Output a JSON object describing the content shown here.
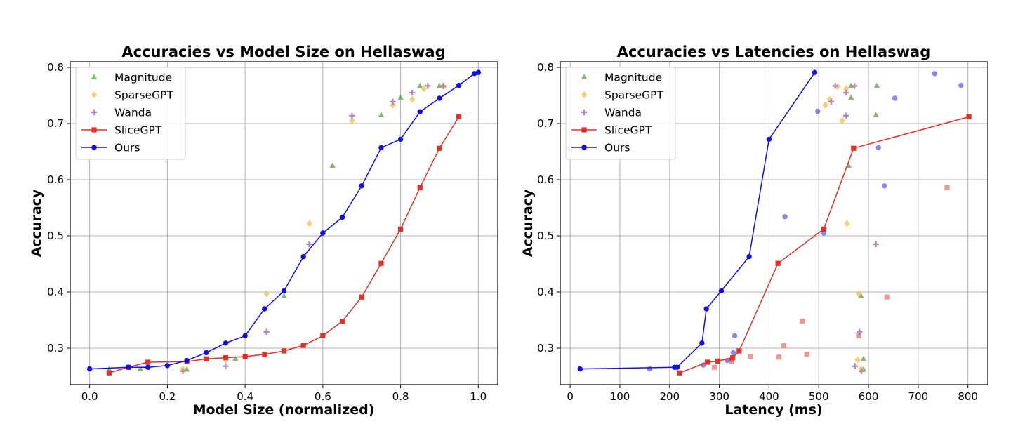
{
  "chart_data": [
    {
      "type": "scatter",
      "title": "Accuracies vs Model Size on Hellaswag",
      "xlabel": "Model Size (normalized)",
      "ylabel": "Accuracy",
      "xlim": [
        -0.05,
        1.05
      ],
      "ylim": [
        0.235,
        0.81
      ],
      "xticks": [
        0.0,
        0.2,
        0.4,
        0.6,
        0.8,
        1.0
      ],
      "xtick_labels": [
        "0.0",
        "0.2",
        "0.4",
        "0.6",
        "0.8",
        "1.0"
      ],
      "yticks": [
        0.3,
        0.4,
        0.5,
        0.6,
        0.7,
        0.8
      ],
      "ytick_labels": [
        "0.3",
        "0.4",
        "0.5",
        "0.6",
        "0.7",
        "0.8"
      ],
      "grid": true,
      "legend_position": "top-left",
      "series": [
        {
          "name": "Magnitude",
          "kind": "scatter",
          "marker": "triangle",
          "color": "#6aaa5a",
          "points": [
            [
              0.05,
              0.262
            ],
            [
              0.13,
              0.263
            ],
            [
              0.25,
              0.262
            ],
            [
              0.375,
              0.281
            ],
            [
              0.5,
              0.393
            ],
            [
              0.625,
              0.625
            ],
            [
              0.75,
              0.715
            ],
            [
              0.8,
              0.746
            ],
            [
              0.85,
              0.767
            ],
            [
              0.9,
              0.767
            ],
            [
              0.91,
              0.767
            ]
          ]
        },
        {
          "name": "SparseGPT",
          "kind": "scatter",
          "marker": "diamond",
          "color": "#f6c75a",
          "points": [
            [
              0.24,
              0.263
            ],
            [
              0.35,
              0.279
            ],
            [
              0.455,
              0.397
            ],
            [
              0.565,
              0.522
            ],
            [
              0.675,
              0.705
            ],
            [
              0.78,
              0.733
            ],
            [
              0.83,
              0.743
            ],
            [
              0.86,
              0.762
            ],
            [
              0.91,
              0.766
            ]
          ]
        },
        {
          "name": "Wanda",
          "kind": "scatter",
          "marker": "plus",
          "color": "#a774b8",
          "points": [
            [
              0.24,
              0.259
            ],
            [
              0.35,
              0.268
            ],
            [
              0.455,
              0.329
            ],
            [
              0.565,
              0.485
            ],
            [
              0.675,
              0.714
            ],
            [
              0.78,
              0.739
            ],
            [
              0.83,
              0.755
            ],
            [
              0.87,
              0.767
            ],
            [
              0.91,
              0.767
            ]
          ]
        },
        {
          "name": "SliceGPT",
          "kind": "line",
          "marker": "square",
          "color": "#e03028",
          "points": [
            [
              0.05,
              0.256
            ],
            [
              0.1,
              0.266
            ],
            [
              0.15,
              0.275
            ],
            [
              0.25,
              0.276
            ],
            [
              0.3,
              0.281
            ],
            [
              0.35,
              0.283
            ],
            [
              0.4,
              0.285
            ],
            [
              0.45,
              0.289
            ],
            [
              0.5,
              0.295
            ],
            [
              0.55,
              0.305
            ],
            [
              0.6,
              0.322
            ],
            [
              0.65,
              0.348
            ],
            [
              0.7,
              0.391
            ],
            [
              0.75,
              0.451
            ],
            [
              0.8,
              0.512
            ],
            [
              0.85,
              0.586
            ],
            [
              0.9,
              0.656
            ],
            [
              0.95,
              0.712
            ]
          ]
        },
        {
          "name": "Ours",
          "kind": "line",
          "marker": "circle",
          "color": "#1010e0",
          "points": [
            [
              0.0,
              0.263
            ],
            [
              0.1,
              0.266
            ],
            [
              0.15,
              0.266
            ],
            [
              0.2,
              0.269
            ],
            [
              0.25,
              0.278
            ],
            [
              0.3,
              0.292
            ],
            [
              0.35,
              0.309
            ],
            [
              0.4,
              0.322
            ],
            [
              0.45,
              0.37
            ],
            [
              0.5,
              0.402
            ],
            [
              0.55,
              0.463
            ],
            [
              0.6,
              0.505
            ],
            [
              0.65,
              0.533
            ],
            [
              0.7,
              0.589
            ],
            [
              0.75,
              0.657
            ],
            [
              0.8,
              0.672
            ],
            [
              0.85,
              0.721
            ],
            [
              0.9,
              0.745
            ],
            [
              0.95,
              0.768
            ],
            [
              0.99,
              0.789
            ],
            [
              1.0,
              0.791
            ]
          ]
        }
      ]
    },
    {
      "type": "scatter",
      "title": "Accuracies vs Latencies on Hellaswag",
      "xlabel": "Latency (ms)",
      "ylabel": "Accuracy",
      "xlim": [
        -20,
        840
      ],
      "ylim": [
        0.235,
        0.81
      ],
      "xticks": [
        0,
        100,
        200,
        300,
        400,
        500,
        600,
        700,
        800
      ],
      "xtick_labels": [
        "0",
        "100",
        "200",
        "300",
        "400",
        "500",
        "600",
        "700",
        "800"
      ],
      "yticks": [
        0.3,
        0.4,
        0.5,
        0.6,
        0.7,
        0.8
      ],
      "ytick_labels": [
        "0.3",
        "0.4",
        "0.5",
        "0.6",
        "0.7",
        "0.8"
      ],
      "grid": true,
      "legend_position": "top-left",
      "series": [
        {
          "name": "Magnitude",
          "kind": "scatter",
          "marker": "triangle",
          "color": "#6aaa5a",
          "points": [
            [
              590,
              0.262
            ],
            [
              590,
              0.281
            ],
            [
              585,
              0.393
            ],
            [
              560,
              0.625
            ],
            [
              615,
              0.715
            ],
            [
              565,
              0.746
            ],
            [
              565,
              0.767
            ],
            [
              617,
              0.767
            ]
          ]
        },
        {
          "name": "SparseGPT",
          "kind": "scatter",
          "marker": "diamond",
          "color": "#f6c75a",
          "points": [
            [
              585,
              0.263
            ],
            [
              578,
              0.279
            ],
            [
              580,
              0.397
            ],
            [
              557,
              0.522
            ],
            [
              547,
              0.705
            ],
            [
              513,
              0.733
            ],
            [
              522,
              0.743
            ],
            [
              555,
              0.762
            ],
            [
              538,
              0.766
            ]
          ]
        },
        {
          "name": "Wanda",
          "kind": "scatter",
          "marker": "plus",
          "color": "#a774b8",
          "points": [
            [
              586,
              0.259
            ],
            [
              573,
              0.268
            ],
            [
              582,
              0.329
            ],
            [
              615,
              0.485
            ],
            [
              555,
              0.714
            ],
            [
              525,
              0.739
            ],
            [
              555,
              0.755
            ],
            [
              533,
              0.767
            ],
            [
              572,
              0.767
            ]
          ]
        },
        {
          "name": "",
          "kind": "scatter",
          "marker": "square",
          "color": "#e03028",
          "faded": true,
          "points": [
            [
              290,
              0.266
            ],
            [
              325,
              0.276
            ],
            [
              325,
              0.28
            ],
            [
              362,
              0.285
            ],
            [
              420,
              0.284
            ],
            [
              430,
              0.305
            ],
            [
              476,
              0.289
            ],
            [
              467,
              0.348
            ],
            [
              580,
              0.322
            ],
            [
              637,
              0.391
            ],
            [
              758,
              0.586
            ]
          ]
        },
        {
          "name": "",
          "kind": "scatter",
          "marker": "circle",
          "color": "#1010e0",
          "faded": true,
          "points": [
            [
              160,
              0.263
            ],
            [
              268,
              0.27
            ],
            [
              316,
              0.278
            ],
            [
              328,
              0.292
            ],
            [
              331,
              0.322
            ],
            [
              432,
              0.534
            ],
            [
              510,
              0.505
            ],
            [
              498,
              0.722
            ],
            [
              620,
              0.657
            ],
            [
              632,
              0.589
            ],
            [
              653,
              0.745
            ],
            [
              733,
              0.789
            ],
            [
              786,
              0.768
            ]
          ]
        },
        {
          "name": "SliceGPT",
          "kind": "line",
          "marker": "square",
          "color": "#e03028",
          "points": [
            [
              220,
              0.256
            ],
            [
              276,
              0.275
            ],
            [
              297,
              0.277
            ],
            [
              327,
              0.283
            ],
            [
              340,
              0.295
            ],
            [
              418,
              0.451
            ],
            [
              510,
              0.512
            ],
            [
              570,
              0.656
            ],
            [
              802,
              0.712
            ]
          ]
        },
        {
          "name": "Ours",
          "kind": "line",
          "marker": "circle",
          "color": "#1010e0",
          "points": [
            [
              20,
              0.263
            ],
            [
              210,
              0.266
            ],
            [
              215,
              0.266
            ],
            [
              265,
              0.309
            ],
            [
              274,
              0.37
            ],
            [
              304,
              0.402
            ],
            [
              360,
              0.463
            ],
            [
              400,
              0.672
            ],
            [
              492,
              0.791
            ]
          ]
        }
      ]
    }
  ]
}
